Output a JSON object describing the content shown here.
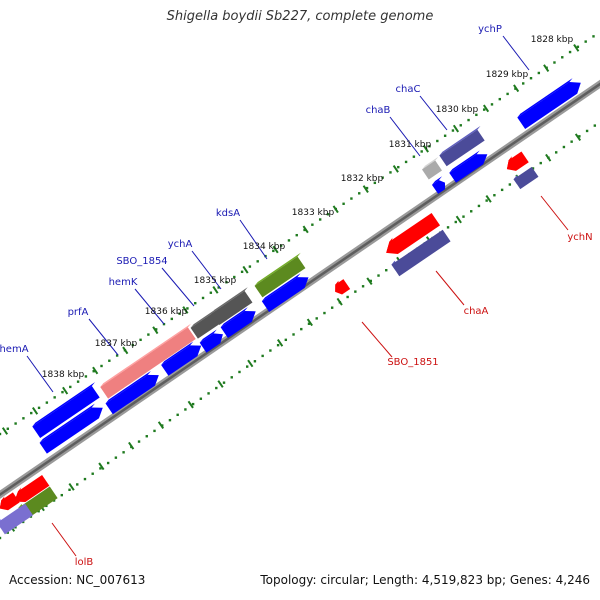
{
  "title": "Shigella boydii Sb227, complete genome",
  "accession": "Accession: NC_007613",
  "summary": "Topology: circular; Length: 4,519,823 bp; Genes: 4,246",
  "colors": {
    "blue": "#0000ff",
    "red": "#ff0000",
    "slate": "#4b4b99",
    "olive": "#5c8a1f",
    "gray": "#555555",
    "light_gray": "#aaaaaa",
    "pink": "#ef8080",
    "violet": "#7a6fd0",
    "tick": "#1f7a1f",
    "label_blue": "#1a1ab3",
    "label_red": "#cc1111"
  },
  "scale": {
    "unit": "kbp",
    "ticks": [
      1828,
      1829,
      1830,
      1831,
      1832,
      1833,
      1834,
      1835,
      1836,
      1837,
      1838
    ]
  },
  "genes": [
    {
      "name": "ychP",
      "strand": "+",
      "labeled": true
    },
    {
      "name": "chaC",
      "strand": "+",
      "labeled": true
    },
    {
      "name": "chaB",
      "strand": "+",
      "labeled": true
    },
    {
      "name": "kdsA",
      "strand": "+",
      "labeled": true
    },
    {
      "name": "ychA",
      "strand": "+",
      "labeled": true
    },
    {
      "name": "SBO_1854",
      "strand": "+",
      "labeled": true
    },
    {
      "name": "hemK",
      "strand": "+",
      "labeled": true
    },
    {
      "name": "prfA",
      "strand": "+",
      "labeled": true
    },
    {
      "name": "hemA",
      "strand": "+",
      "labeled": true
    },
    {
      "name": "ychN",
      "strand": "-",
      "labeled": true
    },
    {
      "name": "chaA",
      "strand": "-",
      "labeled": true
    },
    {
      "name": "SBO_1851",
      "strand": "-",
      "labeled": true
    },
    {
      "name": "lolB",
      "strand": "-",
      "labeled": true
    }
  ]
}
